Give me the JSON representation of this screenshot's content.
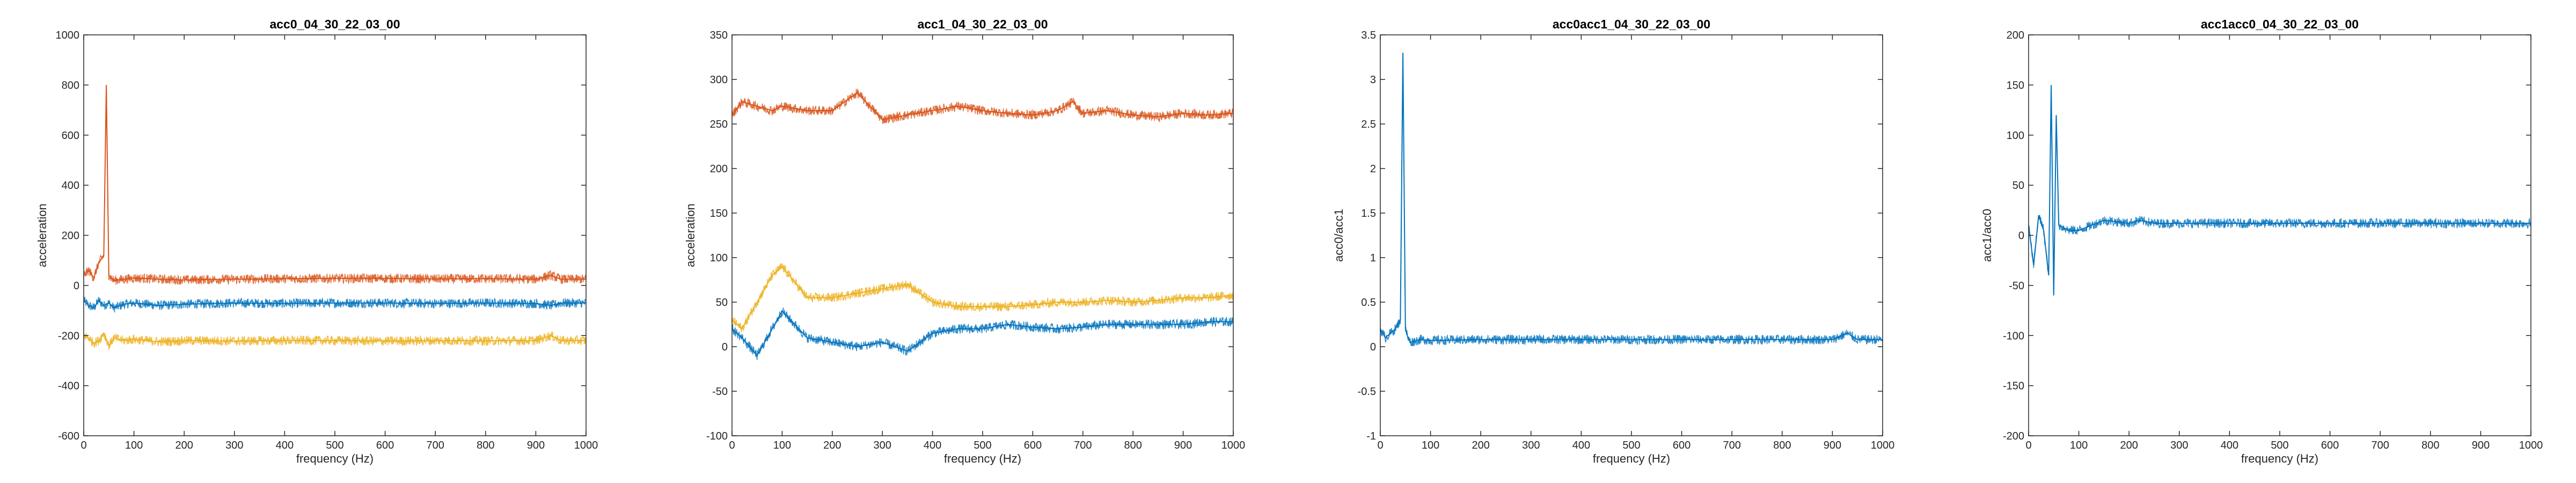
{
  "chart_data": [
    {
      "type": "line",
      "title": "acc0_04_30_22_03_00",
      "xlabel": "frequency (Hz)",
      "ylabel": "acceleration",
      "xlim": [
        0,
        1000
      ],
      "ylim": [
        -600,
        1000
      ],
      "xticks": [
        "0",
        "100",
        "200",
        "300",
        "400",
        "500",
        "600",
        "700",
        "800",
        "900",
        "1000"
      ],
      "yticks": [
        "-600",
        "-400",
        "-200",
        "0",
        "200",
        "400",
        "600",
        "800",
        "1000"
      ],
      "grid": false,
      "series": [
        {
          "color": "#0072BD",
          "x": [
            0,
            10,
            20,
            30,
            40,
            50,
            60,
            80,
            100,
            150,
            200,
            300,
            400,
            500,
            600,
            700,
            800,
            900,
            930,
            950,
            1000
          ],
          "y": [
            -60,
            -80,
            -90,
            -60,
            -80,
            -70,
            -90,
            -75,
            -70,
            -80,
            -75,
            -70,
            -72,
            -70,
            -70,
            -72,
            -70,
            -72,
            -80,
            -70,
            -70
          ]
        },
        {
          "color": "#D95319",
          "x": [
            0,
            10,
            20,
            30,
            40,
            45,
            50,
            60,
            80,
            100,
            150,
            200,
            300,
            400,
            500,
            600,
            700,
            800,
            900,
            930,
            950,
            1000
          ],
          "y": [
            40,
            60,
            30,
            90,
            120,
            800,
            40,
            20,
            25,
            30,
            25,
            22,
            25,
            27,
            28,
            28,
            26,
            27,
            25,
            40,
            25,
            25
          ]
        },
        {
          "color": "#EDB120",
          "x": [
            0,
            10,
            20,
            30,
            40,
            50,
            60,
            80,
            100,
            150,
            200,
            300,
            400,
            500,
            600,
            700,
            800,
            900,
            930,
            950,
            1000
          ],
          "y": [
            -200,
            -210,
            -230,
            -220,
            -190,
            -240,
            -210,
            -220,
            -215,
            -225,
            -220,
            -222,
            -220,
            -220,
            -222,
            -220,
            -221,
            -220,
            -200,
            -220,
            -220
          ]
        }
      ]
    },
    {
      "type": "line",
      "title": "acc1_04_30_22_03_00",
      "xlabel": "frequency (Hz)",
      "ylabel": "acceleration",
      "xlim": [
        0,
        1000
      ],
      "ylim": [
        -100,
        350
      ],
      "xticks": [
        "0",
        "100",
        "200",
        "300",
        "400",
        "500",
        "600",
        "700",
        "800",
        "900",
        "1000"
      ],
      "yticks": [
        "-100",
        "-50",
        "0",
        "50",
        "100",
        "150",
        "200",
        "250",
        "300",
        "350"
      ],
      "grid": false,
      "series": [
        {
          "color": "#D95319",
          "x": [
            0,
            20,
            50,
            80,
            100,
            150,
            200,
            250,
            300,
            350,
            400,
            450,
            500,
            550,
            600,
            650,
            680,
            700,
            750,
            800,
            850,
            900,
            950,
            1000
          ],
          "y": [
            260,
            275,
            270,
            265,
            270,
            265,
            265,
            285,
            255,
            260,
            265,
            270,
            265,
            262,
            260,
            265,
            275,
            262,
            265,
            260,
            258,
            262,
            260,
            262
          ]
        },
        {
          "color": "#EDB120",
          "x": [
            0,
            20,
            50,
            80,
            100,
            150,
            200,
            250,
            300,
            350,
            400,
            450,
            500,
            550,
            600,
            650,
            700,
            750,
            800,
            850,
            900,
            950,
            1000
          ],
          "y": [
            30,
            20,
            50,
            80,
            90,
            55,
            55,
            60,
            65,
            70,
            50,
            45,
            45,
            45,
            47,
            50,
            50,
            52,
            50,
            52,
            55,
            55,
            58
          ]
        },
        {
          "color": "#0072BD",
          "x": [
            0,
            20,
            50,
            80,
            100,
            150,
            200,
            250,
            300,
            350,
            400,
            450,
            500,
            550,
            600,
            650,
            700,
            750,
            800,
            850,
            900,
            950,
            1000
          ],
          "y": [
            20,
            10,
            -10,
            20,
            40,
            10,
            5,
            0,
            5,
            -5,
            15,
            20,
            20,
            25,
            22,
            20,
            22,
            25,
            25,
            25,
            25,
            28,
            28
          ]
        }
      ]
    },
    {
      "type": "line",
      "title": "acc0acc1_04_30_22_03_00",
      "xlabel": "frequency (Hz)",
      "ylabel": "acc0/acc1",
      "xlim": [
        0,
        1000
      ],
      "ylim": [
        -1,
        3.5
      ],
      "xticks": [
        "0",
        "100",
        "200",
        "300",
        "400",
        "500",
        "600",
        "700",
        "800",
        "900",
        "1000"
      ],
      "yticks": [
        "-1",
        "-0.5",
        "0",
        "0.5",
        "1",
        "1.5",
        "2",
        "2.5",
        "3",
        "3.5"
      ],
      "grid": false,
      "series": [
        {
          "color": "#0072BD",
          "x": [
            0,
            10,
            20,
            30,
            40,
            45,
            50,
            55,
            60,
            80,
            100,
            200,
            300,
            400,
            500,
            600,
            700,
            800,
            900,
            930,
            950,
            1000
          ],
          "y": [
            0.2,
            0.1,
            0.15,
            0.2,
            0.3,
            3.3,
            0.2,
            0.1,
            0.05,
            0.08,
            0.07,
            0.08,
            0.08,
            0.08,
            0.08,
            0.08,
            0.08,
            0.08,
            0.08,
            0.15,
            0.08,
            0.08
          ]
        }
      ]
    },
    {
      "type": "line",
      "title": "acc1acc0_04_30_22_03_00",
      "xlabel": "frequency (Hz)",
      "ylabel": "acc1/acc0",
      "xlim": [
        0,
        1000
      ],
      "ylim": [
        -200,
        200
      ],
      "xticks": [
        "0",
        "100",
        "200",
        "300",
        "400",
        "500",
        "600",
        "700",
        "800",
        "900",
        "1000"
      ],
      "yticks": [
        "-200",
        "-150",
        "-100",
        "-50",
        "0",
        "50",
        "100",
        "150",
        "200"
      ],
      "grid": false,
      "series": [
        {
          "color": "#0072BD",
          "x": [
            0,
            10,
            20,
            30,
            40,
            45,
            50,
            55,
            60,
            80,
            100,
            150,
            200,
            220,
            250,
            300,
            400,
            500,
            600,
            700,
            800,
            900,
            930,
            950,
            1000
          ],
          "y": [
            10,
            -30,
            20,
            5,
            -40,
            150,
            -60,
            120,
            10,
            5,
            5,
            15,
            12,
            15,
            12,
            12,
            12,
            12,
            12,
            12,
            12,
            12,
            12,
            12,
            12
          ]
        }
      ]
    }
  ]
}
